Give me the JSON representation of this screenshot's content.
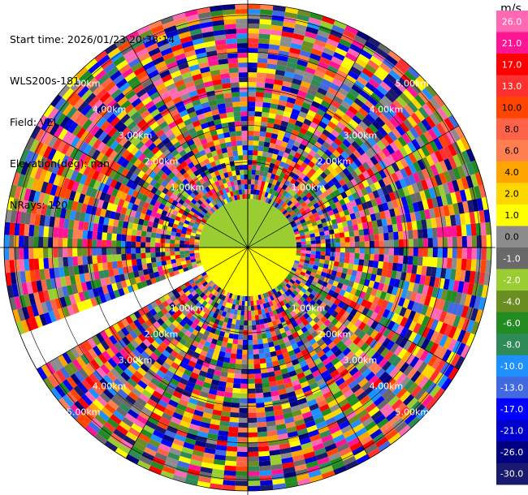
{
  "info": {
    "start_time": "Start time: 2026/01/23 20:38:14",
    "instrument": "WLS200s-181",
    "field": "Field: VEL",
    "elevation": "Elevation(deg): nan",
    "nrays": "NRays: 120"
  },
  "chart_data": {
    "type": "ppi",
    "field": "VEL",
    "units": "m/s",
    "range_ring_labels": [
      "1.00km",
      "2.00km",
      "3.00km",
      "4.00km",
      "5.00km"
    ],
    "range_rings_km": [
      1,
      2,
      3,
      4,
      5
    ],
    "colorbar": {
      "unit_label": "m/s",
      "ticks": [
        "26.0",
        "21.0",
        "17.0",
        "13.0",
        "10.0",
        "8.0",
        "6.0",
        "4.0",
        "2.0",
        "1.0",
        "0.0",
        "-1.0",
        "-2.0",
        "-4.0",
        "-6.0",
        "-8.0",
        "-10.0",
        "-13.0",
        "-17.0",
        "-21.0",
        "-26.0",
        "-30.0"
      ],
      "colors": [
        "#ff69b4",
        "#ff1493",
        "#ff0000",
        "#ff3030",
        "#ff4500",
        "#ff6347",
        "#ff7f50",
        "#ffa500",
        "#ffd700",
        "#ffff00",
        "#8c8c8c",
        "#696969",
        "#9acd32",
        "#6b8e23",
        "#228b22",
        "#2e8b57",
        "#1e90ff",
        "#4169e1",
        "#0000ff",
        "#0000cd",
        "#000080",
        "#191970"
      ]
    },
    "near_range": {
      "upper_color": "#9acd32",
      "lower_color": "#ffff00"
    },
    "no_data_sector_az_deg": [
      240,
      250
    ]
  }
}
